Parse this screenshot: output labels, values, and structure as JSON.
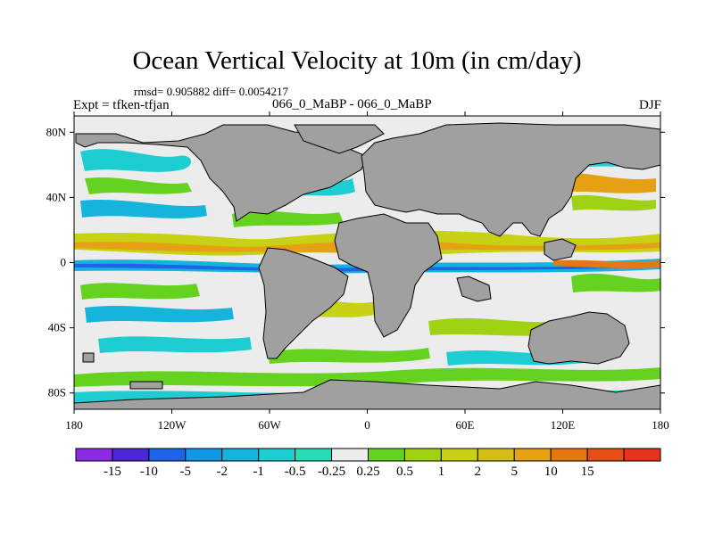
{
  "header": {
    "title": "Ocean Vertical Velocity at 10m (in cm/day)",
    "stats": "rmsd= 0.905882  diff= 0.0054217",
    "left_label": "Expt = tfken-tfjan",
    "center_label": "066_0_MaBP - 066_0_MaBP",
    "right_label": "DJF"
  },
  "map": {
    "lat_labels": [
      "80N",
      "40N",
      "0",
      "40S",
      "80S"
    ],
    "lon_labels": [
      "180",
      "120W",
      "60W",
      "0",
      "60E",
      "120E",
      "180"
    ],
    "lat_values": [
      80,
      40,
      0,
      -40,
      -80
    ],
    "lon_values": [
      -180,
      -120,
      -60,
      0,
      60,
      120,
      180
    ],
    "land_color": "#a0a0a0"
  },
  "colorbar": {
    "colors": [
      "#8a2be2",
      "#4b28d6",
      "#1e64e6",
      "#1496e6",
      "#14b4dc",
      "#1ecdd2",
      "#28dcb4",
      "#ececec",
      "#64d21e",
      "#a0d214",
      "#c8d214",
      "#d2be14",
      "#e6a014",
      "#e67814",
      "#e65014",
      "#e6321e"
    ],
    "labels": [
      "-15",
      "-10",
      "-5",
      "-2",
      "-1",
      "-0.5",
      "-0.25",
      "0.25",
      "0.5",
      "1",
      "2",
      "5",
      "10",
      "15"
    ]
  }
}
